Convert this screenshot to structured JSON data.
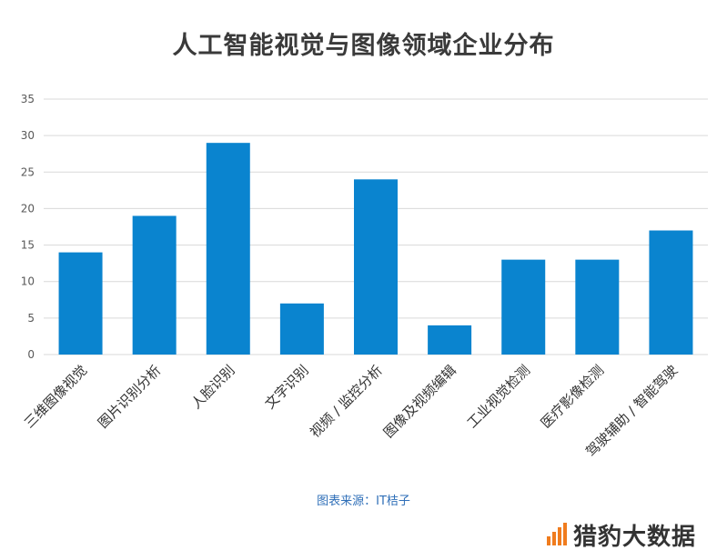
{
  "chart_data": {
    "type": "bar",
    "title": "人工智能视觉与图像领域企业分布",
    "categories": [
      "三维图像视觉",
      "图片识别分析",
      "人脸识别",
      "文字识别",
      "视频 / 监控分析",
      "图像及视频编辑",
      "工业视觉检测",
      "医疗影像检测",
      "驾驶辅助 / 智能驾驶"
    ],
    "values": [
      14,
      19,
      29,
      7,
      24,
      4,
      13,
      13,
      17
    ],
    "ylim": [
      0,
      35
    ],
    "yticks": [
      0,
      5,
      10,
      15,
      20,
      25,
      30,
      35
    ],
    "xlabel": "",
    "ylabel": "",
    "grid": true,
    "bar_color": "#0a84cf",
    "grid_color": "#d9d9d9",
    "tick_color": "#595959"
  },
  "source": "图表来源：IT桔子",
  "brand": {
    "text": "猎豹大数据",
    "logo_icon": "bar-logo-icon",
    "logo_color": "#f07c1e"
  }
}
